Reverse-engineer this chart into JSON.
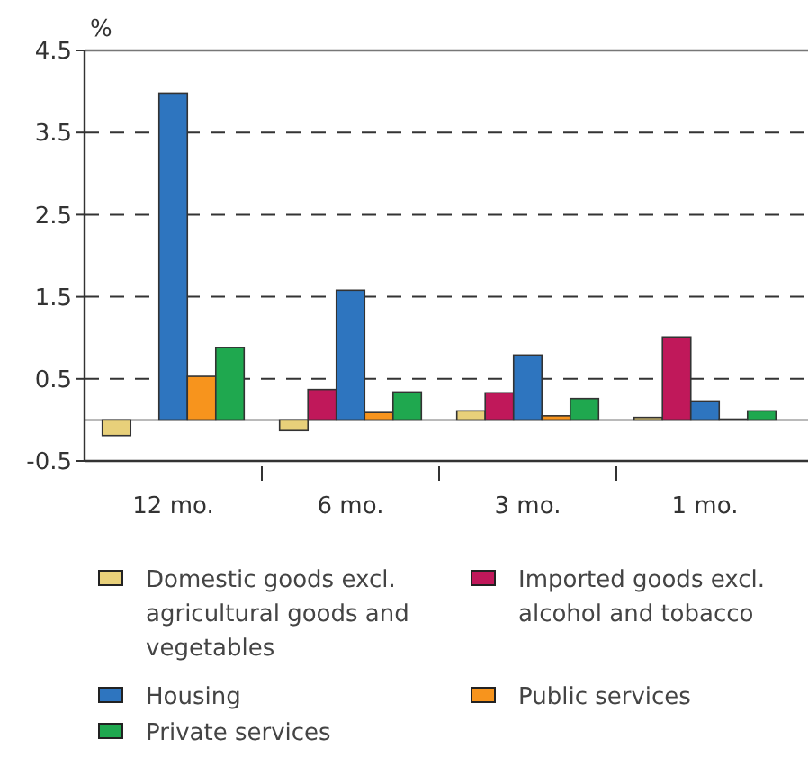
{
  "chart_data": {
    "type": "bar",
    "ylabel": "%",
    "categories": [
      "12 mo.",
      "6 mo.",
      "3 mo.",
      "1 mo."
    ],
    "series": [
      {
        "name": "Domestic goods excl. agricultural goods and vegetables",
        "color": "#e8d07a",
        "values": [
          -0.19,
          -0.13,
          0.11,
          0.03
        ]
      },
      {
        "name": "Imported goods excl. alcohol and tobacco",
        "color": "#c0185a",
        "values": [
          0,
          0.37,
          0.33,
          1.01
        ]
      },
      {
        "name": "Housing",
        "color": "#2e75bf",
        "values": [
          3.98,
          1.58,
          0.79,
          0.23
        ]
      },
      {
        "name": "Public services",
        "color": "#f7941d",
        "values": [
          0.53,
          0.09,
          0.05,
          0.01
        ]
      },
      {
        "name": "Private services",
        "color": "#1fa84f",
        "values": [
          0.88,
          0.34,
          0.26,
          0.11
        ]
      }
    ],
    "ylim": [
      -0.5,
      4.5
    ],
    "yticks": [
      -0.5,
      0.5,
      1.5,
      2.5,
      3.5,
      4.5
    ],
    "grid": "y",
    "legend": "bottom"
  }
}
